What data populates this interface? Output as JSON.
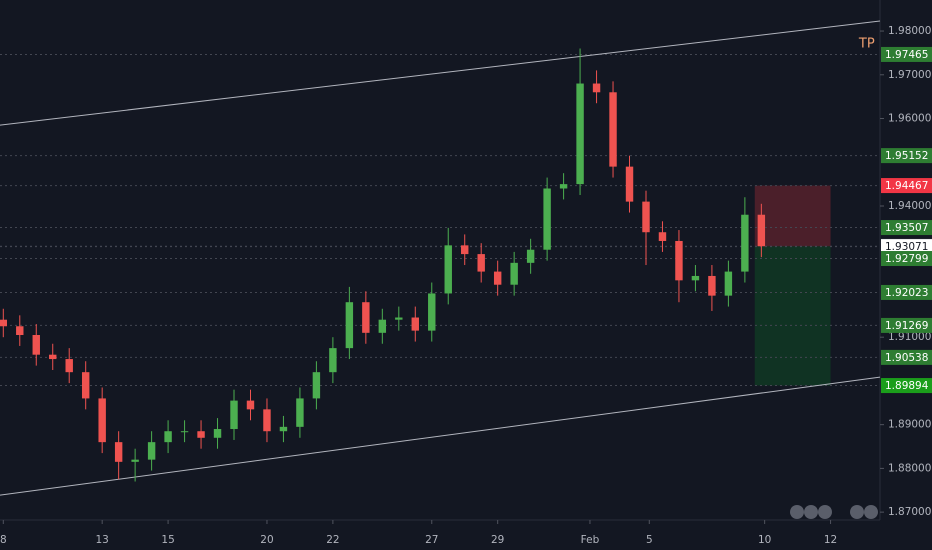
{
  "chart_data": {
    "type": "candlestick",
    "x": [
      0,
      0.5,
      1,
      1.5,
      2,
      2.5,
      3,
      3.5,
      4,
      4.5,
      5,
      5.5,
      6,
      6.5,
      7,
      7.5,
      8,
      8.5,
      9,
      9.5,
      10,
      10.5,
      11,
      11.5,
      12,
      12.5,
      13,
      13.5,
      14,
      14.5,
      15,
      15.5,
      16,
      16.5,
      17,
      17.5,
      18,
      18.5,
      19,
      19.5,
      20,
      20.5,
      21,
      21.5,
      22,
      22.5,
      23
    ],
    "open": [
      1.914,
      1.9125,
      1.9105,
      1.906,
      1.905,
      1.902,
      1.896,
      1.886,
      1.8815,
      1.882,
      1.886,
      1.8885,
      1.8885,
      1.887,
      1.889,
      1.8955,
      1.8935,
      1.8885,
      1.8895,
      1.896,
      1.902,
      1.9075,
      1.918,
      1.911,
      1.914,
      1.9145,
      1.9115,
      1.92,
      1.931,
      1.929,
      1.925,
      1.922,
      1.927,
      1.93,
      1.944,
      1.945,
      1.968,
      1.966,
      1.949,
      1.941,
      1.934,
      1.932,
      1.923,
      1.924,
      1.9195,
      1.925,
      1.938
    ],
    "high": [
      1.9165,
      1.915,
      1.913,
      1.9085,
      1.9075,
      1.9045,
      1.8985,
      1.8885,
      1.8845,
      1.8885,
      1.891,
      1.891,
      1.891,
      1.8915,
      1.898,
      1.898,
      1.896,
      1.892,
      1.8985,
      1.9045,
      1.91,
      1.9215,
      1.9205,
      1.9165,
      1.917,
      1.917,
      1.9225,
      1.935,
      1.9335,
      1.9315,
      1.9275,
      1.9295,
      1.9325,
      1.9465,
      1.9475,
      1.976,
      1.971,
      1.9685,
      1.9515,
      1.9435,
      1.9365,
      1.9345,
      1.9265,
      1.9265,
      1.9275,
      1.942,
      1.9405
    ],
    "low": [
      1.91,
      1.908,
      1.9035,
      1.9025,
      1.8995,
      1.8935,
      1.8835,
      1.8775,
      1.877,
      1.8795,
      1.8835,
      1.886,
      1.8845,
      1.8845,
      1.8865,
      1.891,
      1.886,
      1.886,
      1.887,
      1.8935,
      1.8995,
      1.905,
      1.9085,
      1.9085,
      1.9115,
      1.909,
      1.909,
      1.9175,
      1.9265,
      1.9225,
      1.9195,
      1.9195,
      1.9245,
      1.9275,
      1.9415,
      1.9425,
      1.9635,
      1.9465,
      1.9385,
      1.9265,
      1.9295,
      1.918,
      1.9205,
      1.916,
      1.917,
      1.9225,
      1.9283
    ],
    "close": [
      1.9125,
      1.9105,
      1.906,
      1.905,
      1.902,
      1.896,
      1.886,
      1.8815,
      1.882,
      1.886,
      1.8885,
      1.8885,
      1.887,
      1.889,
      1.8955,
      1.8935,
      1.8885,
      1.8895,
      1.896,
      1.902,
      1.9075,
      1.918,
      1.911,
      1.914,
      1.9145,
      1.9115,
      1.92,
      1.931,
      1.929,
      1.925,
      1.922,
      1.927,
      1.93,
      1.944,
      1.945,
      1.968,
      1.966,
      1.949,
      1.941,
      1.934,
      1.932,
      1.923,
      1.924,
      1.9195,
      1.925,
      1.938,
      1.9308
    ],
    "up_color": "#4caf50",
    "down_color": "#ef5350",
    "xlim": [
      -0.1,
      26.6
    ],
    "ylim": [
      1.8682,
      1.9871
    ],
    "xticks": [
      {
        "value": 0,
        "label": "8"
      },
      {
        "value": 3,
        "label": "13"
      },
      {
        "value": 5,
        "label": "15"
      },
      {
        "value": 8,
        "label": "20"
      },
      {
        "value": 10,
        "label": "22"
      },
      {
        "value": 13,
        "label": "27"
      },
      {
        "value": 15,
        "label": "29"
      },
      {
        "value": 17.8,
        "label": "Feb"
      },
      {
        "value": 19.6,
        "label": "5"
      },
      {
        "value": 23.1,
        "label": "10"
      },
      {
        "value": 25.1,
        "label": "12"
      }
    ],
    "yticks": [
      {
        "value": 1.98,
        "label": "1.98000"
      },
      {
        "value": 1.97,
        "label": "1.97000"
      },
      {
        "value": 1.96,
        "label": "1.96000"
      },
      {
        "value": 1.94,
        "label": "1.94000"
      },
      {
        "value": 1.91,
        "label": "1.91000"
      },
      {
        "value": 1.89,
        "label": "1.89000"
      },
      {
        "value": 1.88,
        "label": "1.88000"
      },
      {
        "value": 1.87,
        "label": "1.87000"
      }
    ],
    "price_lines": [
      {
        "value": 1.97465,
        "color": "#2e7d32"
      },
      {
        "value": 1.95152,
        "color": "#2e7d32"
      },
      {
        "value": 1.94467,
        "color": "#f23645"
      },
      {
        "value": 1.93507,
        "color": "#2e7d32"
      },
      {
        "value": 1.93079,
        "color": "#363a45"
      },
      {
        "value": 1.93071,
        "color": "#ffffff"
      },
      {
        "value": 1.92799,
        "color": "#2e7d32"
      },
      {
        "value": 1.92023,
        "color": "#2e7d32"
      },
      {
        "value": 1.91269,
        "color": "#2e7d32"
      },
      {
        "value": 1.90538,
        "color": "#2e7d32"
      },
      {
        "value": 1.89894,
        "color": "#1b9e1b"
      }
    ],
    "trendlines": [
      {
        "x": [
          -0.1,
          26.6
        ],
        "y": [
          1.9585,
          1.98229
        ]
      },
      {
        "x": [
          -0.1,
          26.6
        ],
        "y": [
          1.87389,
          1.90087
        ]
      }
    ],
    "position": {
      "x": [
        22.8,
        25.1
      ],
      "entry": 1.93079,
      "stop": 1.94467,
      "target": 1.89894
    },
    "annotations": [
      {
        "text": "TP",
        "x": 26.2,
        "y": 1.97703,
        "color": "#f0a070"
      }
    ]
  }
}
